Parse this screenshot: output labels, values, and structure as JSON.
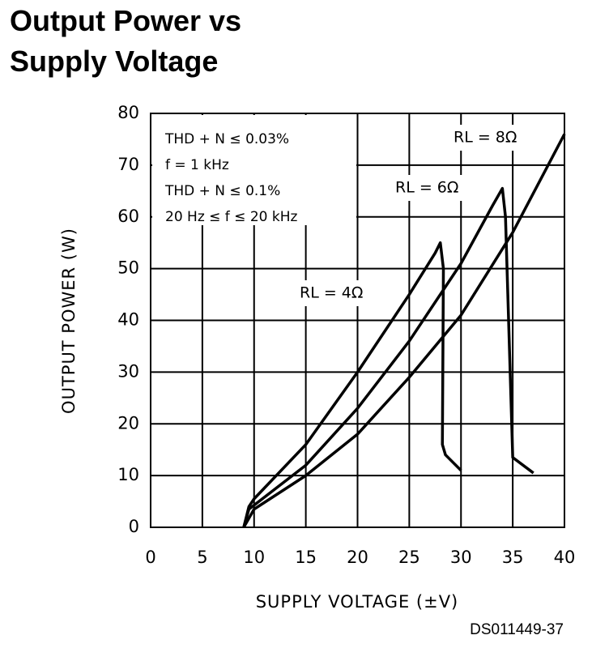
{
  "chart_data": {
    "type": "line",
    "title_lines": [
      "Output Power vs",
      "Supply Voltage"
    ],
    "xlabel": "SUPPLY VOLTAGE (±V)",
    "ylabel": "OUTPUT POWER (W)",
    "figure_id": "DS011449-37",
    "annotations": [
      "THD + N ≤ 0.03%",
      "f = 1 kHz",
      "THD + N ≤ 0.1%",
      "20 Hz ≤ f ≤ 20 kHz"
    ],
    "xlim": [
      0,
      40
    ],
    "xticks": [
      0,
      5,
      10,
      15,
      20,
      25,
      30,
      35,
      40
    ],
    "ylim": [
      0,
      80
    ],
    "yticks": [
      0,
      10,
      20,
      30,
      40,
      50,
      60,
      70,
      80
    ],
    "grid": true,
    "series": [
      {
        "name": "RL = 4Ω",
        "color": "#000000",
        "x": [
          9,
          9.5,
          10,
          15,
          20,
          25,
          27.5,
          28,
          28.3,
          28.2,
          28.5,
          30
        ],
        "values": [
          0,
          4,
          5.5,
          16,
          30,
          45,
          53,
          55,
          50,
          16,
          14,
          11
        ]
      },
      {
        "name": "RL = 6Ω",
        "color": "#000000",
        "x": [
          9,
          9.5,
          15,
          20,
          25,
          30,
          33,
          34,
          34.3,
          35,
          37
        ],
        "values": [
          0,
          3.5,
          12,
          23,
          36,
          51,
          62,
          65.5,
          60,
          13.5,
          10.5
        ]
      },
      {
        "name": "RL = 8Ω",
        "color": "#000000",
        "x": [
          9,
          10,
          15,
          20,
          25,
          30,
          35,
          40
        ],
        "values": [
          0,
          3.5,
          10,
          18,
          29,
          41,
          57,
          76
        ]
      }
    ]
  }
}
